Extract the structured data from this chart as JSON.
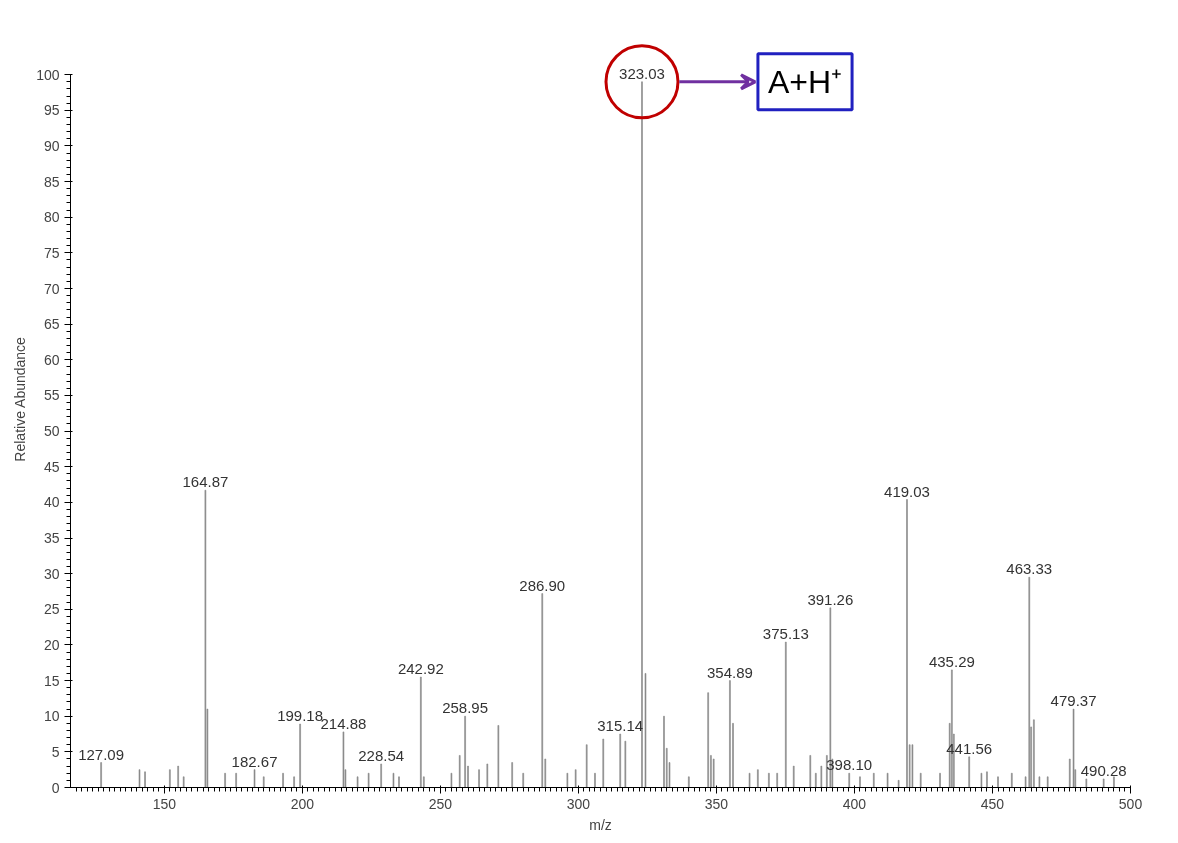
{
  "chart_data": {
    "type": "bar",
    "xlabel": "m/z",
    "ylabel": "Relative Abundance",
    "color": "#888888",
    "x": [
      127.09,
      141,
      143,
      152,
      155,
      157,
      164.87,
      165.6,
      172,
      176,
      182.67,
      186,
      193,
      197,
      199.18,
      214.88,
      215.6,
      220,
      224,
      228.54,
      233,
      235,
      242.92,
      244,
      254,
      257,
      258.95,
      260,
      264,
      267,
      271,
      276,
      280,
      286.9,
      288,
      296,
      299,
      303,
      306,
      309,
      315.14,
      317,
      323.03,
      324.3,
      331,
      332,
      333,
      340,
      347,
      348,
      349,
      354.89,
      356,
      362,
      365,
      369,
      372,
      375.13,
      378,
      384,
      386,
      388,
      390,
      391.26,
      392,
      398.1,
      402,
      407,
      412,
      416,
      419.03,
      420,
      421,
      424,
      431,
      434.5,
      435.29,
      436,
      441.56,
      446,
      448,
      452,
      457,
      462,
      463.33,
      464,
      465,
      467,
      470,
      478,
      479.37,
      480,
      484,
      490.28,
      494
    ],
    "values": [
      3.5,
      2.5,
      2.2,
      2.5,
      3,
      1.5,
      41.7,
      11,
      2,
      2,
      2.5,
      1.5,
      2,
      1.5,
      8.9,
      7.8,
      2.5,
      1.5,
      2,
      3.3,
      2,
      1.5,
      15.5,
      1.5,
      2,
      4.5,
      10,
      3,
      2.5,
      3.3,
      8.7,
      3.5,
      2,
      27.2,
      4,
      2,
      2.5,
      6,
      2,
      6.8,
      7.5,
      6.5,
      99,
      16,
      10,
      5.5,
      3.5,
      1.5,
      13.3,
      4.5,
      4,
      15,
      9,
      2,
      2.5,
      2,
      2,
      20.4,
      3,
      4.5,
      2,
      3,
      4.5,
      25.2,
      4,
      2,
      1.5,
      2,
      2,
      1,
      40.4,
      6,
      6,
      2,
      2,
      9,
      16.5,
      7.5,
      4.3,
      2,
      2.2,
      1.5,
      2,
      1.5,
      29.5,
      8.5,
      9.5,
      1.5,
      1.5,
      4,
      11,
      2.5,
      1.2,
      1.2,
      1.5
    ],
    "xlim": [
      116,
      500
    ],
    "xticks": [
      150,
      200,
      250,
      300,
      350,
      400,
      450,
      500
    ],
    "ylim": [
      0,
      100
    ],
    "yticks": [
      0,
      5,
      10,
      15,
      20,
      25,
      30,
      35,
      40,
      45,
      50,
      55,
      60,
      65,
      70,
      75,
      80,
      85,
      90,
      95,
      100
    ],
    "grid": false,
    "annotations": [
      {
        "text": "127.09",
        "x": 127.09,
        "y": 3.5
      },
      {
        "text": "164.87",
        "x": 164.87,
        "y": 41.7
      },
      {
        "text": "182.67",
        "x": 182.67,
        "y": 2.5
      },
      {
        "text": "199.18",
        "x": 199.18,
        "y": 8.9
      },
      {
        "text": "214.88",
        "x": 214.88,
        "y": 7.8
      },
      {
        "text": "228.54",
        "x": 228.54,
        "y": 3.3
      },
      {
        "text": "242.92",
        "x": 242.92,
        "y": 15.5
      },
      {
        "text": "258.95",
        "x": 258.95,
        "y": 10
      },
      {
        "text": "286.90",
        "x": 286.9,
        "y": 27.2
      },
      {
        "text": "315.14",
        "x": 315.14,
        "y": 7.5
      },
      {
        "text": "323.03",
        "x": 323.03,
        "y": 99
      },
      {
        "text": "354.89",
        "x": 354.89,
        "y": 15
      },
      {
        "text": "375.13",
        "x": 375.13,
        "y": 20.4
      },
      {
        "text": "391.26",
        "x": 391.26,
        "y": 25.2
      },
      {
        "text": "398.10",
        "x": 398.1,
        "y": 2
      },
      {
        "text": "419.03",
        "x": 419.03,
        "y": 40.4
      },
      {
        "text": "435.29",
        "x": 435.29,
        "y": 16.5
      },
      {
        "text": "441.56",
        "x": 441.56,
        "y": 4.3
      },
      {
        "text": "463.33",
        "x": 463.33,
        "y": 29.5
      },
      {
        "text": "479.37",
        "x": 479.37,
        "y": 11
      },
      {
        "text": "490.28",
        "x": 490.28,
        "y": 1.2
      },
      "A+H⁺"
    ]
  }
}
